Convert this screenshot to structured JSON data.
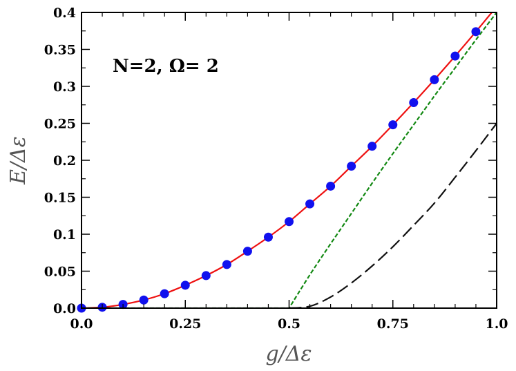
{
  "chart_data": {
    "type": "line",
    "title": "",
    "annotation": "N=2, Ω= 2",
    "xlabel": "g/Δε",
    "ylabel": "E/Δε",
    "xlim": [
      0,
      1
    ],
    "ylim": [
      0,
      0.4
    ],
    "x_ticks": [
      {
        "value": 0,
        "label": "0.0"
      },
      {
        "value": 0.25,
        "label": "0.25"
      },
      {
        "value": 0.5,
        "label": "0.5"
      },
      {
        "value": 0.75,
        "label": "0.75"
      },
      {
        "value": 1.0,
        "label": "1.0"
      }
    ],
    "y_ticks": [
      {
        "value": 0,
        "label": "0.0"
      },
      {
        "value": 0.05,
        "label": "0.05"
      },
      {
        "value": 0.1,
        "label": "0.1"
      },
      {
        "value": 0.15,
        "label": "0.15"
      },
      {
        "value": 0.2,
        "label": "0.2"
      },
      {
        "value": 0.25,
        "label": "0.25"
      },
      {
        "value": 0.3,
        "label": "0.3"
      },
      {
        "value": 0.35,
        "label": "0.35"
      },
      {
        "value": 0.4,
        "label": "0.4"
      }
    ],
    "x_minor_ticks": [
      0.05,
      0.1,
      0.15,
      0.2,
      0.3,
      0.35,
      0.4,
      0.45,
      0.55,
      0.6,
      0.65,
      0.7,
      0.8,
      0.85,
      0.9,
      0.95
    ],
    "y_minor_ticks": [
      0.025,
      0.075,
      0.125,
      0.175,
      0.225,
      0.275,
      0.325,
      0.375
    ],
    "grid": false,
    "series": [
      {
        "style": "solid",
        "color": "#ee1111",
        "x": [
          0,
          0.05,
          0.1,
          0.15,
          0.2,
          0.25,
          0.3,
          0.35,
          0.4,
          0.45,
          0.5,
          0.55,
          0.6,
          0.65,
          0.7,
          0.75,
          0.8,
          0.85,
          0.9,
          0.95,
          1.0
        ],
        "y": [
          0,
          0.0012,
          0.005,
          0.011,
          0.0195,
          0.031,
          0.044,
          0.059,
          0.077,
          0.096,
          0.117,
          0.141,
          0.165,
          0.192,
          0.219,
          0.248,
          0.278,
          0.309,
          0.341,
          0.374,
          0.408
        ]
      },
      {
        "style": "markers",
        "color": "#1111ee",
        "x": [
          0,
          0.05,
          0.1,
          0.15,
          0.2,
          0.25,
          0.3,
          0.35,
          0.4,
          0.45,
          0.5,
          0.55,
          0.6,
          0.65,
          0.7,
          0.75,
          0.8,
          0.85,
          0.9,
          0.95
        ],
        "y": [
          0,
          0.0012,
          0.005,
          0.011,
          0.0195,
          0.031,
          0.044,
          0.059,
          0.077,
          0.096,
          0.117,
          0.141,
          0.165,
          0.192,
          0.219,
          0.248,
          0.278,
          0.309,
          0.341,
          0.374
        ]
      },
      {
        "style": "short-dash",
        "color": "#118811",
        "x": [
          0,
          0.5,
          0.55,
          0.6,
          0.65,
          0.7,
          0.75,
          0.8,
          0.85,
          0.9,
          0.95,
          1.0
        ],
        "y": [
          0,
          0,
          0.045,
          0.087,
          0.128,
          0.169,
          0.209,
          0.248,
          0.287,
          0.325,
          0.363,
          0.4
        ]
      },
      {
        "style": "long-dash",
        "color": "#111111",
        "x": [
          0.5,
          0.55,
          0.6,
          0.65,
          0.7,
          0.75,
          0.8,
          0.85,
          0.9,
          0.95,
          1.0
        ],
        "y": [
          0,
          0.0025,
          0.015,
          0.034,
          0.057,
          0.083,
          0.112,
          0.142,
          0.177,
          0.213,
          0.25
        ]
      }
    ]
  }
}
